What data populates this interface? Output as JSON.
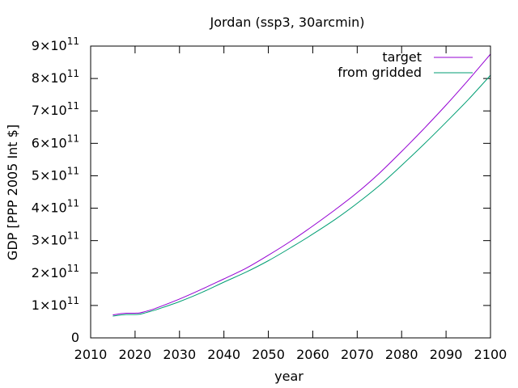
{
  "chart_data": {
    "type": "line",
    "title": "Jordan (ssp3, 30arcmin)",
    "xlabel": "year",
    "ylabel": "GDP [PPP 2005 Int $]",
    "xlim": [
      2010,
      2100
    ],
    "ylim": [
      0,
      900000000000
    ],
    "x_ticks": [
      "2010",
      "2020",
      "2030",
      "2040",
      "2050",
      "2060",
      "2070",
      "2080",
      "2090",
      "2100"
    ],
    "y_ticks": [
      {
        "mant": "",
        "exp": "",
        "plain": "0"
      },
      {
        "mant": "1×10",
        "exp": "11"
      },
      {
        "mant": "2×10",
        "exp": "11"
      },
      {
        "mant": "3×10",
        "exp": "11"
      },
      {
        "mant": "4×10",
        "exp": "11"
      },
      {
        "mant": "5×10",
        "exp": "11"
      },
      {
        "mant": "6×10",
        "exp": "11"
      },
      {
        "mant": "7×10",
        "exp": "11"
      },
      {
        "mant": "8×10",
        "exp": "11"
      },
      {
        "mant": "9×10",
        "exp": "11"
      }
    ],
    "grid": false,
    "legend_position": "top-right",
    "x": [
      2015,
      2016,
      2017,
      2018,
      2019,
      2020,
      2021,
      2022,
      2023,
      2024,
      2025,
      2030,
      2035,
      2040,
      2045,
      2050,
      2055,
      2060,
      2065,
      2070,
      2075,
      2080,
      2085,
      2090,
      2095,
      2100
    ],
    "series": [
      {
        "name": "target",
        "color": "#9400d3",
        "values": [
          71000000000.0,
          73000000000.0,
          75000000000.0,
          76000000000.0,
          76000000000.0,
          76000000000.0,
          77000000000.0,
          80000000000.0,
          84000000000.0,
          88000000000.0,
          93000000000.0,
          120000000000.0,
          150000000000.0,
          182000000000.0,
          215000000000.0,
          255000000000.0,
          298000000000.0,
          345000000000.0,
          395000000000.0,
          448000000000.0,
          508000000000.0,
          575000000000.0,
          645000000000.0,
          718000000000.0,
          795000000000.0,
          875000000000.0
        ]
      },
      {
        "name": "from gridded",
        "color": "#009e73",
        "values": [
          67000000000.0,
          69000000000.0,
          71000000000.0,
          72000000000.0,
          72000000000.0,
          72000000000.0,
          73000000000.0,
          76000000000.0,
          80000000000.0,
          84000000000.0,
          88000000000.0,
          112000000000.0,
          140000000000.0,
          172000000000.0,
          203000000000.0,
          238000000000.0,
          278000000000.0,
          320000000000.0,
          365000000000.0,
          415000000000.0,
          470000000000.0,
          532000000000.0,
          597000000000.0,
          665000000000.0,
          735000000000.0,
          810000000000.0
        ]
      }
    ]
  }
}
